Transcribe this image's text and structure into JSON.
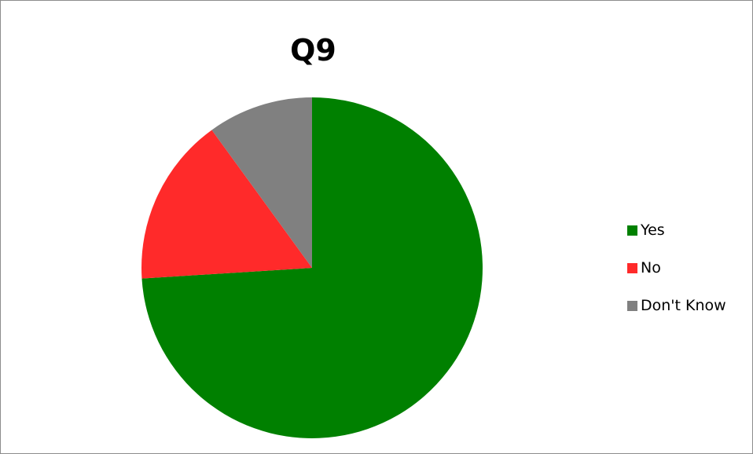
{
  "chart_data": {
    "type": "pie",
    "title": "Q9",
    "categories": [
      "Yes",
      "No",
      "Don't Know"
    ],
    "values": [
      74,
      16,
      10
    ],
    "colors": [
      "#008000",
      "#ff2a2a",
      "#808080"
    ],
    "start_angle": "12 o'clock",
    "direction": "clockwise",
    "legend": "right"
  }
}
